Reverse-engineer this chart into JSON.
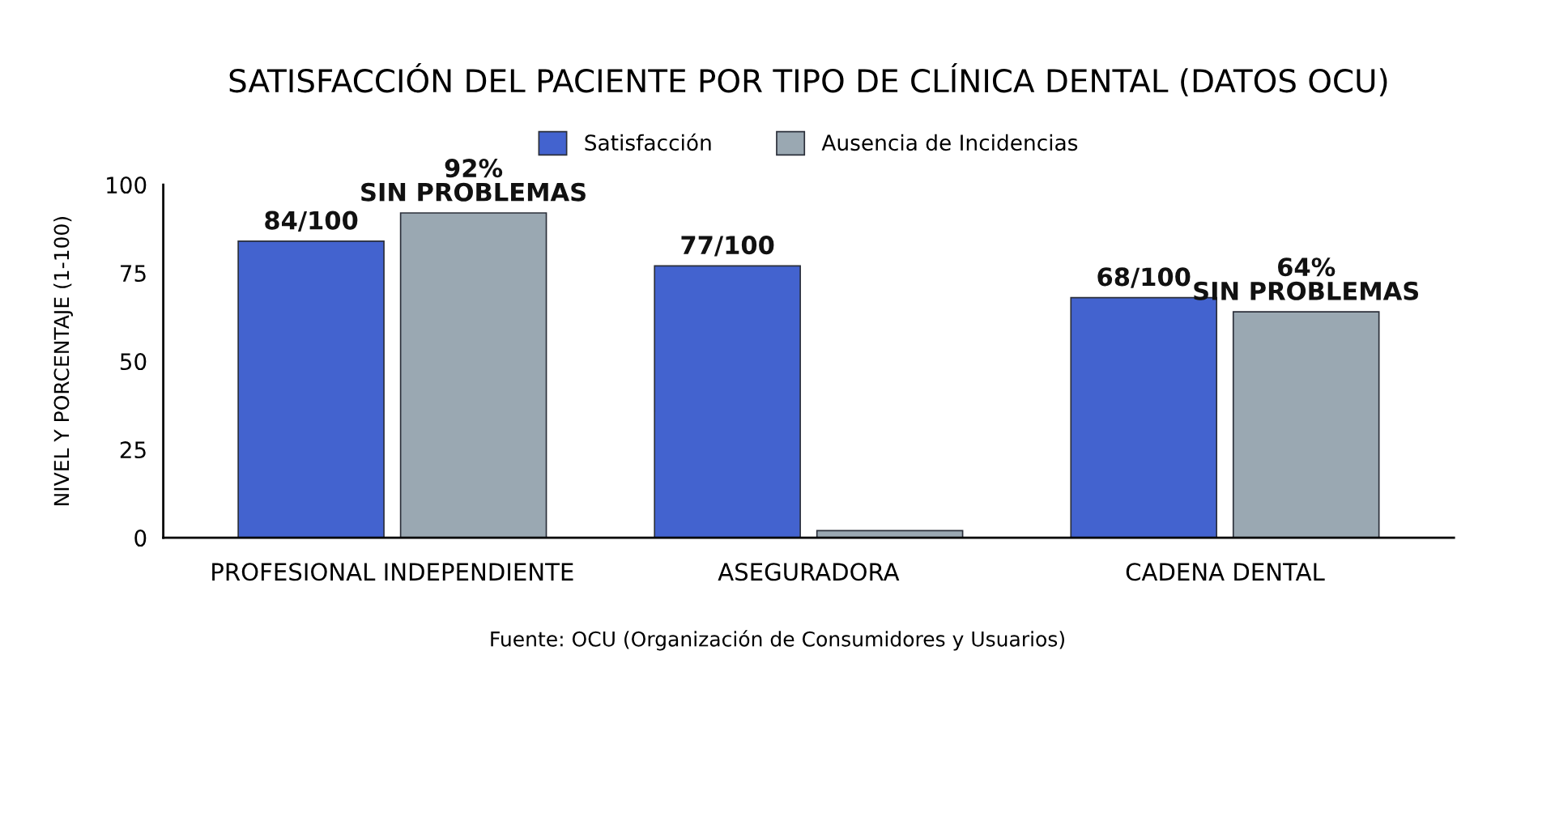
{
  "chart_data": {
    "type": "bar",
    "title": "SATISFACCIÓN DEL PACIENTE POR TIPO DE CLÍNICA DENTAL (DATOS OCU)",
    "categories": [
      "PROFESIONAL INDEPENDIENTE",
      "ASEGURADORA",
      "CADENA DENTAL"
    ],
    "series": [
      {
        "name": "Satisfacción",
        "color": "#4363cf",
        "values": [
          84,
          77,
          68
        ],
        "value_labels": [
          "84/100",
          "77/100",
          "68/100"
        ]
      },
      {
        "name": "Ausencia de Incidencias",
        "color": "#9aa8b2",
        "values": [
          92,
          2,
          64
        ],
        "value_labels": [
          "92%\nSIN PROBLEMAS",
          null,
          "64%\nSIN PROBLEMAS"
        ]
      }
    ],
    "ylabel": "NIVEL Y PORCENTAJE (1-100)",
    "ylim": [
      0,
      100
    ],
    "yticks": [
      0,
      25,
      50,
      75,
      100
    ],
    "grid": false,
    "legend": "top",
    "annotations": [
      "Fuente: OCU (Organización de Consumidores y Usuarios)"
    ]
  }
}
